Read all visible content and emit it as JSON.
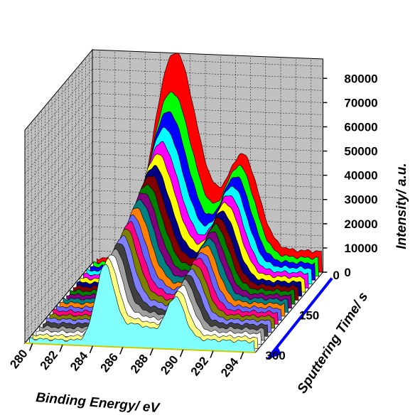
{
  "chart_data": {
    "type": "area",
    "view": "3d-waterfall",
    "x": {
      "label": "Binding Energy/ eV",
      "range": [
        279.5,
        294.8
      ],
      "ticks": [
        280,
        282,
        284,
        286,
        288,
        290,
        292,
        294
      ]
    },
    "y": {
      "label": "Intensity/ a.u.",
      "range": [
        0,
        88000
      ],
      "ticks": [
        0,
        10000,
        20000,
        30000,
        40000,
        50000,
        60000,
        70000,
        80000
      ]
    },
    "z": {
      "label": "Sputtering Time/ s",
      "range": [
        0,
        300
      ],
      "ticks": [
        0,
        150,
        300
      ]
    },
    "grid": true,
    "wall_color": "#c0c0c0",
    "series": [
      {
        "time": 0,
        "color": "#ff0000",
        "peak1": 82000,
        "peak2": 38000
      },
      {
        "time": 15,
        "color": "#00ff00",
        "peak1": 68000,
        "peak2": 36000
      },
      {
        "time": 30,
        "color": "#0000ff",
        "peak1": 62000,
        "peak2": 34000
      },
      {
        "time": 45,
        "color": "#00ffff",
        "peak1": 57000,
        "peak2": 32000
      },
      {
        "time": 60,
        "color": "#ff00ff",
        "peak1": 53000,
        "peak2": 30500
      },
      {
        "time": 75,
        "color": "#ffff00",
        "peak1": 50000,
        "peak2": 29000
      },
      {
        "time": 90,
        "color": "#000080",
        "peak1": 47000,
        "peak2": 27500
      },
      {
        "time": 105,
        "color": "#800000",
        "peak1": 45000,
        "peak2": 26500
      },
      {
        "time": 120,
        "color": "#008000",
        "peak1": 43000,
        "peak2": 25500
      },
      {
        "time": 135,
        "color": "#800080",
        "peak1": 41500,
        "peak2": 24500
      },
      {
        "time": 150,
        "color": "#008080",
        "peak1": 40000,
        "peak2": 23500
      },
      {
        "time": 165,
        "color": "#ff8000",
        "peak1": 38500,
        "peak2": 22500
      },
      {
        "time": 180,
        "color": "#6464ff",
        "peak1": 37000,
        "peak2": 21500
      },
      {
        "time": 195,
        "color": "#ff0080",
        "peak1": 36000,
        "peak2": 21000
      },
      {
        "time": 210,
        "color": "#808000",
        "peak1": 35000,
        "peak2": 20000
      },
      {
        "time": 225,
        "color": "#8080ff",
        "peak1": 34000,
        "peak2": 19500
      },
      {
        "time": 240,
        "color": "#404040",
        "peak1": 33000,
        "peak2": 19000
      },
      {
        "time": 255,
        "color": "#a0a0a0",
        "peak1": 32000,
        "peak2": 18500
      },
      {
        "time": 270,
        "color": "#ffffff",
        "peak1": 31500,
        "peak2": 18000
      },
      {
        "time": 285,
        "color": "#ffff80",
        "peak1": 31000,
        "peak2": 17500
      },
      {
        "time": 300,
        "color": "#80ffff",
        "peak1": 30500,
        "peak2": 17000
      }
    ],
    "peak_positions_eV": [
      284.8,
      289.5
    ],
    "baseline": 2000,
    "arrow_color": "#0000ff"
  }
}
